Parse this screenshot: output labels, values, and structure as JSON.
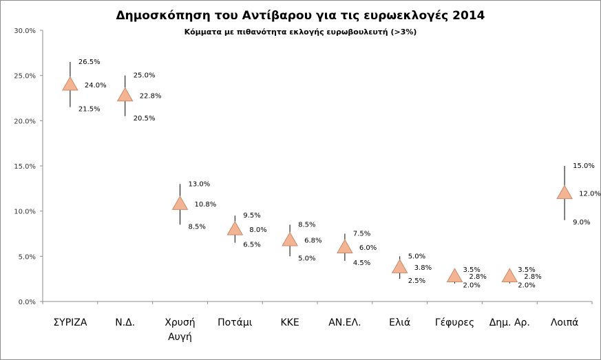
{
  "chart_data": {
    "type": "scatter",
    "title": "Δημοσκόπηση του Αντίβαρου για τις ευρωεκλογές 2014",
    "subtitle": "Κόμματα με πιθανότητα εκλογής ευρωβουλευτή (>3%)",
    "ylim": [
      0,
      30
    ],
    "yticks": [
      "0.0%",
      "5.0%",
      "10.0%",
      "15.0%",
      "20.0%",
      "25.0%",
      "30.0%"
    ],
    "categories": [
      {
        "lines": [
          "ΣΥΡΙΖΑ"
        ]
      },
      {
        "lines": [
          "Ν.Δ."
        ]
      },
      {
        "lines": [
          "Χρυσή",
          "Αυγή"
        ]
      },
      {
        "lines": [
          "Ποτάμι"
        ]
      },
      {
        "lines": [
          "ΚΚΕ"
        ]
      },
      {
        "lines": [
          "ΑΝ.ΕΛ."
        ]
      },
      {
        "lines": [
          "Ελιά"
        ]
      },
      {
        "lines": [
          "Γέφυρες"
        ]
      },
      {
        "lines": [
          "Δημ. Αρ."
        ]
      },
      {
        "lines": [
          "Λοιπά"
        ]
      }
    ],
    "series": [
      {
        "name": "high",
        "values": [
          26.5,
          25.0,
          13.0,
          9.5,
          8.5,
          7.5,
          5.0,
          3.5,
          3.5,
          15.0
        ],
        "labels": [
          "26.5%",
          "25.0%",
          "13.0%",
          "9.5%",
          "8.5%",
          "7.5%",
          "5.0%",
          "3.5%",
          "3.5%",
          "15.0%"
        ]
      },
      {
        "name": "estimate",
        "values": [
          24.0,
          22.8,
          10.8,
          8.0,
          6.8,
          6.0,
          3.8,
          2.8,
          2.8,
          12.0
        ],
        "labels": [
          "24.0%",
          "22.8%",
          "10.8%",
          "8.0%",
          "6.8%",
          "6.0%",
          "3.8%",
          "2.8%",
          "2.8%",
          "12.0%"
        ]
      },
      {
        "name": "low",
        "values": [
          21.5,
          20.5,
          8.5,
          6.5,
          5.0,
          4.5,
          2.5,
          2.0,
          2.0,
          9.0
        ],
        "labels": [
          "21.5%",
          "20.5%",
          "8.5%",
          "6.5%",
          "5.0%",
          "4.5%",
          "2.5%",
          "2.0%",
          "2.0%",
          "9.0%"
        ]
      }
    ],
    "colors": {
      "marker_fill": "#f2b493",
      "marker_stroke": "#c98a6b",
      "whisker": "#000000",
      "axis": "#8c8c8c"
    }
  }
}
